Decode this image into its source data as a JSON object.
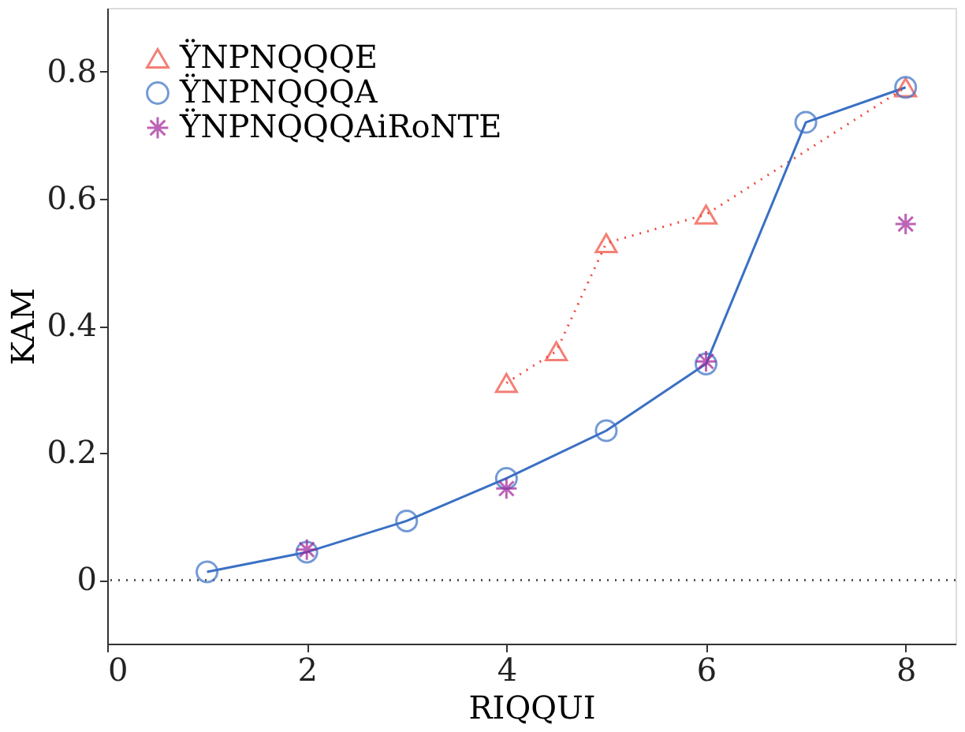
{
  "chart_data": {
    "type": "line",
    "xlabel": "RIQQUI",
    "ylabel": "KAM",
    "xlim": [
      0,
      8.5
    ],
    "xticks": [
      0,
      2,
      4,
      6,
      8
    ],
    "ylim": [
      -0.1,
      0.9
    ],
    "yticks": [
      0,
      0.2,
      0.4,
      0.6,
      0.8
    ],
    "legend": "top left",
    "grid": false,
    "ref_lines": [
      {
        "axis": "y",
        "value": 0,
        "label": null,
        "color": "#555555",
        "line_style": "dotted"
      }
    ],
    "series": [
      {
        "name": "ŸNPNQQQE",
        "color": "#f04a3c",
        "marker": "triangle",
        "line_style": "dotted",
        "x": [
          4,
          4.5,
          5,
          6,
          8
        ],
        "values": [
          0.31,
          0.36,
          0.53,
          0.575,
          0.775
        ]
      },
      {
        "name": "ŸNPNQQQA",
        "color": "#3a70c4",
        "marker": "circle",
        "line_style": "solid",
        "x": [
          1,
          2,
          3,
          4,
          5,
          6,
          7,
          8
        ],
        "values": [
          0.013,
          0.044,
          0.093,
          0.16,
          0.235,
          0.34,
          0.72,
          0.775
        ]
      },
      {
        "name": "ŸNPNQQQAiRoNTE",
        "color": "#a0229a",
        "type": "scatter",
        "marker": "cross",
        "x": [
          2,
          4,
          6,
          8
        ],
        "values": [
          0.048,
          0.144,
          0.344,
          0.56
        ]
      }
    ]
  }
}
